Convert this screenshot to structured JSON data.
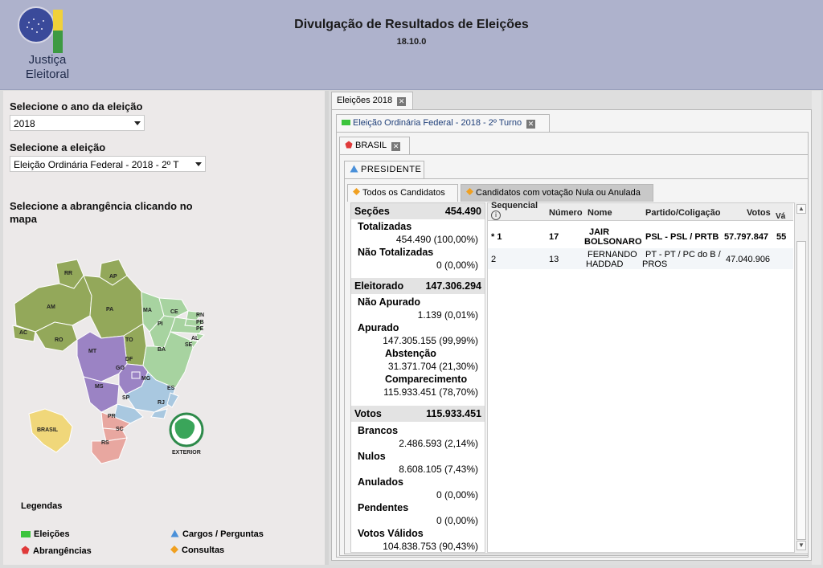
{
  "header": {
    "logo_line1": "Justiça",
    "logo_line2": "Eleitoral",
    "title": "Divulgação de Resultados de Eleições",
    "version": "18.10.0"
  },
  "left": {
    "year_label": "Selecione o ano da eleição",
    "year_value": "2018",
    "election_label": "Selecione a eleição",
    "election_value": "Eleição Ordinária Federal - 2018 - 2º T",
    "scope_label_1": "Selecione a abrangência clicando no",
    "scope_label_2": "mapa",
    "map_states": [
      "RR",
      "AP",
      "AM",
      "PA",
      "MA",
      "CE",
      "RN",
      "PB",
      "PE",
      "PI",
      "AL",
      "SE",
      "AC",
      "RO",
      "TO",
      "MT",
      "BA",
      "DF",
      "GO",
      "MG",
      "MS",
      "SP",
      "ES",
      "RJ",
      "PR",
      "SC",
      "RS"
    ],
    "brasil_label": "BRASIL",
    "exterior_label": "EXTERIOR",
    "legend_title": "Legendas",
    "legend": {
      "eleicoes": "Eleições",
      "abrangencias": "Abrangências",
      "cargos": "Cargos / Perguntas",
      "consultas": "Consultas"
    }
  },
  "tabs": {
    "eleicoes_2018": "Eleições 2018",
    "eleicao": "Eleição Ordinária Federal - 2018 - 2º Turno",
    "brasil": "BRASIL",
    "cargo": "PRESIDENTE",
    "todos": "Todos os Candidatos",
    "nulos": "Candidatos com votação Nula ou Anulada"
  },
  "summary": {
    "secoes_label": "Seções",
    "secoes_value": "454.490",
    "totalizadas_label": "Totalizadas",
    "totalizadas_value": "454.490 (100,00%)",
    "nao_totalizadas_label": "Não Totalizadas",
    "nao_totalizadas_value": "0 (0,00%)",
    "eleitorado_label": "Eleitorado",
    "eleitorado_value": "147.306.294",
    "nao_apurado_label": "Não Apurado",
    "nao_apurado_value": "1.139 (0,01%)",
    "apurado_label": "Apurado",
    "apurado_value": "147.305.155 (99,99%)",
    "abstencao_label": "Abstenção",
    "abstencao_value": "31.371.704 (21,30%)",
    "comparecimento_label": "Comparecimento",
    "comparecimento_value": "115.933.451 (78,70%)",
    "votos_label": "Votos",
    "votos_value": "115.933.451",
    "brancos_label": "Brancos",
    "brancos_value": "2.486.593 (2,14%)",
    "nulos_label": "Nulos",
    "nulos_value": "8.608.105 (7,43%)",
    "anulados_label": "Anulados",
    "anulados_value": "0 (0,00%)",
    "pendentes_label": "Pendentes",
    "pendentes_value": "0 (0,00%)",
    "validos_label": "Votos Válidos",
    "validos_value": "104.838.753 (90,43%)"
  },
  "table": {
    "headers": {
      "sequencial": "Sequencial",
      "numero": "Número",
      "nome": "Nome",
      "partido": "Partido/Coligação",
      "votos": "Votos",
      "validos": "Vá"
    },
    "rows": [
      {
        "seq": "* 1",
        "numero": "17",
        "nome1": "JAIR",
        "nome2": "BOLSONARO",
        "partido1": "PSL - PSL / PRTB",
        "partido2": "",
        "votos": "57.797.847",
        "pct": "55"
      },
      {
        "seq": "2",
        "numero": "13",
        "nome1": "FERNANDO",
        "nome2": "HADDAD",
        "partido1": "PT - PT / PC do B /",
        "partido2": "PROS",
        "votos": "47.040.906",
        "pct": ""
      }
    ]
  },
  "colors": {
    "header_bg": "#aeb2cc",
    "eleicoes_green": "#3cc43c",
    "abrangencia_red": "#e03a3a",
    "cargo_blue": "#4a90d9",
    "consulta_orange": "#f0a020"
  }
}
